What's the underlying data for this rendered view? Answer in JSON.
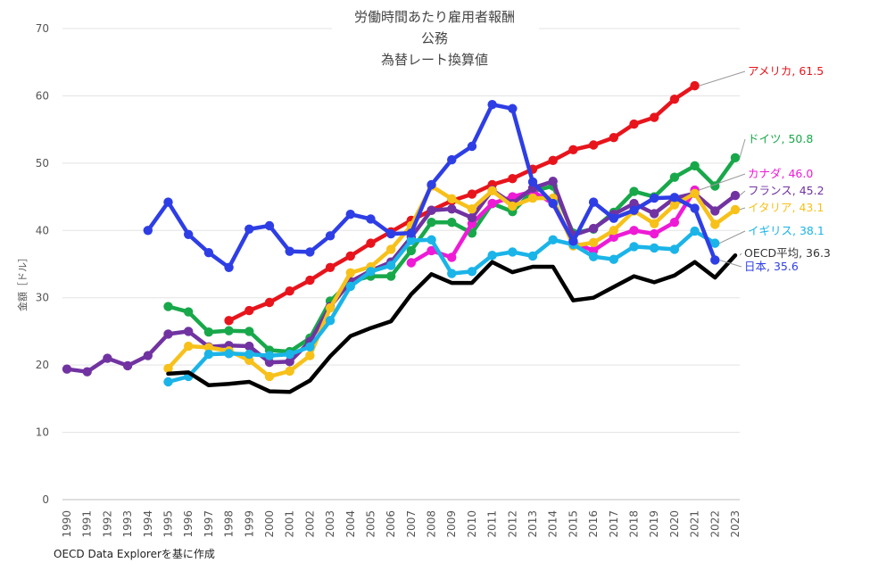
{
  "chart_data": {
    "type": "line",
    "title": [
      "労働時間あたり雇用者報酬",
      "公務",
      "為替レート換算値"
    ],
    "ylabel": "金額［ドル］",
    "xlabel": "",
    "ylim": [
      0,
      70
    ],
    "yticks": [
      0,
      10,
      20,
      30,
      40,
      50,
      60,
      70
    ],
    "grid": true,
    "x": [
      "1990",
      "1991",
      "1992",
      "1993",
      "1994",
      "1995",
      "1996",
      "1997",
      "1998",
      "1999",
      "2000",
      "2001",
      "2002",
      "2003",
      "2004",
      "2005",
      "2006",
      "2007",
      "2008",
      "2009",
      "2010",
      "2011",
      "2012",
      "2013",
      "2014",
      "2015",
      "2016",
      "2017",
      "2018",
      "2019",
      "2020",
      "2021",
      "2022",
      "2023"
    ],
    "series": [
      {
        "name": "アメリカ",
        "label": "アメリカ, 61.5",
        "color": "#e8141c",
        "markers": true,
        "values": [
          null,
          null,
          null,
          null,
          null,
          null,
          null,
          null,
          26.6,
          28.1,
          29.3,
          31.0,
          32.6,
          34.5,
          36.2,
          38.1,
          39.8,
          41.5,
          43.0,
          44.4,
          45.4,
          46.8,
          47.7,
          49.1,
          50.4,
          52.0,
          52.7,
          53.8,
          55.8,
          56.8,
          59.5,
          61.5,
          null,
          null
        ]
      },
      {
        "name": "ドイツ",
        "label": "ドイツ, 50.8",
        "color": "#18a84a",
        "markers": true,
        "values": [
          null,
          null,
          null,
          null,
          null,
          28.7,
          27.9,
          24.9,
          25.1,
          25.0,
          22.2,
          22.0,
          24.0,
          29.5,
          32.4,
          33.2,
          33.2,
          37.0,
          41.2,
          41.2,
          39.6,
          44.0,
          42.8,
          45.8,
          46.6,
          39.6,
          40.2,
          42.7,
          45.8,
          45.0,
          47.9,
          49.6,
          46.6,
          50.8
        ]
      },
      {
        "name": "カナダ",
        "label": "カナダ, 46.0",
        "color": "#ee1ad6",
        "markers": true,
        "values": [
          null,
          null,
          null,
          null,
          null,
          null,
          null,
          null,
          null,
          null,
          null,
          null,
          null,
          null,
          null,
          null,
          null,
          35.2,
          37.0,
          36.0,
          41.0,
          44.0,
          45.0,
          45.8,
          44.0,
          38.2,
          37.0,
          39.0,
          40.0,
          39.5,
          41.2,
          46.0,
          null,
          null
        ]
      },
      {
        "name": "フランス",
        "label": "フランス, 45.2",
        "color": "#7133a1",
        "markers": true,
        "values": [
          19.4,
          19.0,
          21.0,
          19.9,
          21.4,
          24.6,
          25.0,
          22.7,
          22.9,
          22.8,
          20.4,
          20.5,
          23.5,
          28.7,
          32.4,
          34.0,
          35.3,
          39.0,
          43.0,
          43.2,
          41.9,
          46.0,
          44.0,
          46.3,
          47.3,
          39.3,
          40.3,
          42.4,
          44.0,
          42.5,
          44.8,
          45.5,
          42.9,
          45.2
        ]
      },
      {
        "name": "イタリア",
        "label": "イタリア, 43.1",
        "color": "#f7c11a",
        "markers": true,
        "values": [
          null,
          null,
          null,
          null,
          null,
          19.5,
          22.8,
          22.6,
          22.1,
          20.7,
          18.3,
          19.1,
          21.4,
          28.5,
          33.7,
          34.6,
          37.2,
          40.7,
          46.6,
          44.7,
          43.2,
          45.9,
          43.6,
          44.8,
          44.8,
          37.7,
          38.2,
          40.0,
          42.9,
          41.0,
          43.8,
          45.5,
          40.9,
          43.1
        ]
      },
      {
        "name": "イギリス",
        "label": "イギリス, 38.1",
        "color": "#1ab4e8",
        "markers": true,
        "values": [
          null,
          null,
          null,
          null,
          null,
          17.5,
          18.3,
          21.6,
          21.7,
          21.6,
          21.4,
          21.6,
          22.7,
          26.6,
          31.7,
          33.9,
          34.8,
          38.5,
          38.6,
          33.6,
          33.9,
          36.3,
          36.8,
          36.2,
          38.6,
          37.9,
          36.1,
          35.7,
          37.6,
          37.4,
          37.2,
          39.9,
          38.1,
          null
        ]
      },
      {
        "name": "OECD平均",
        "label": "OECD平均, 36.3",
        "color": "#000000",
        "markers": false,
        "values": [
          null,
          null,
          null,
          null,
          null,
          18.7,
          18.9,
          17.0,
          17.2,
          17.5,
          16.1,
          16.0,
          17.7,
          21.3,
          24.3,
          25.5,
          26.5,
          30.5,
          33.5,
          32.2,
          32.2,
          35.3,
          33.8,
          34.6,
          34.6,
          29.6,
          30.0,
          31.6,
          33.2,
          32.3,
          33.3,
          35.3,
          33.0,
          36.3
        ]
      },
      {
        "name": "日本",
        "label": "日本, 35.6",
        "color": "#2e3ee5",
        "markers": true,
        "values": [
          null,
          null,
          null,
          null,
          40.0,
          44.2,
          39.4,
          36.7,
          34.5,
          40.2,
          40.7,
          36.9,
          36.8,
          39.2,
          42.4,
          41.7,
          39.5,
          39.6,
          46.8,
          50.5,
          52.5,
          58.7,
          58.1,
          47.2,
          44.0,
          38.4,
          44.2,
          41.8,
          43.0,
          44.8,
          44.9,
          43.3,
          35.6,
          null
        ]
      }
    ]
  },
  "source_note": "OECD Data Explorerを基に作成"
}
